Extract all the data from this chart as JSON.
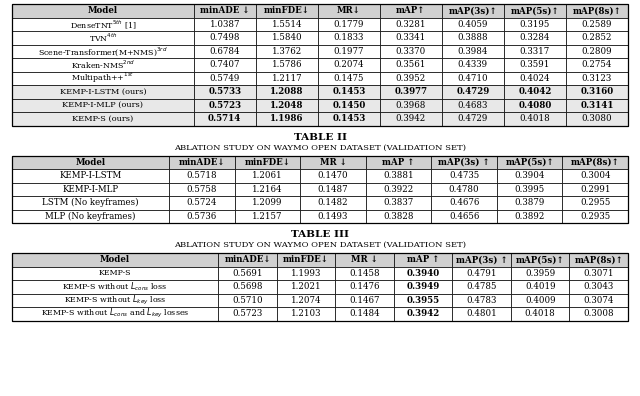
{
  "t1_headers": [
    "Model",
    "minADE ↓",
    "minFDE↓",
    "MR↓",
    "mAP↑",
    "mAP(3s)↑",
    "mAP(5s)↑",
    "mAP(8s)↑"
  ],
  "t1_rows": [
    [
      "DenseTNT",
      "5th",
      " [1]",
      "1.0387",
      "1.5514",
      "0.1779",
      "0.3281",
      "0.4059",
      "0.3195",
      "0.2589"
    ],
    [
      "TVN",
      "4th",
      "",
      "0.7498",
      "1.5840",
      "0.1833",
      "0.3341",
      "0.3888",
      "0.3284",
      "0.2852"
    ],
    [
      "Scene-Transformer(M+NMS)",
      "3rd",
      "",
      "0.6784",
      "1.3762",
      "0.1977",
      "0.3370",
      "0.3984",
      "0.3317",
      "0.2809"
    ],
    [
      "Kraken-NMS",
      "2nd",
      "",
      "0.7407",
      "1.5786",
      "0.2074",
      "0.3561",
      "0.4339",
      "0.3591",
      "0.2754"
    ],
    [
      "Multipath++",
      "1st",
      "",
      "0.5749",
      "1.2117",
      "0.1475",
      "0.3952",
      "0.4710",
      "0.4024",
      "0.3123"
    ],
    [
      "KEMP-I-LSTM (ours)",
      "",
      "",
      "0.5733",
      "1.2088",
      "0.1453",
      "0.3977",
      "0.4729",
      "0.4042",
      "0.3160"
    ],
    [
      "KEMP-I-MLP (ours)",
      "",
      "",
      "0.5723",
      "1.2048",
      "0.1450",
      "0.3968",
      "0.4683",
      "0.4080",
      "0.3141"
    ],
    [
      "KEMP-S (ours)",
      "",
      "",
      "0.5714",
      "1.1986",
      "0.1453",
      "0.3942",
      "0.4729",
      "0.4018",
      "0.3080"
    ]
  ],
  "t1_bold_rows": [
    5,
    6,
    7
  ],
  "t1_bold_spec": {
    "5": [
      3,
      4,
      5,
      6,
      7,
      8,
      9
    ],
    "6": [
      3,
      4,
      5,
      8,
      9
    ],
    "7": [
      3,
      4,
      5
    ]
  },
  "t2_title": "TABLE II",
  "t2_subtitle": "ABLATION STUDY ON WAYMO OPEN DATASET (VALIDATION SET)",
  "t2_headers": [
    "Model",
    "minADE↓",
    "minFDE↓",
    "MR ↓",
    "mAP ↑",
    "mAP(3s) ↑",
    "mAP(5s)↑",
    "mAP(8s)↑"
  ],
  "t2_rows": [
    [
      "KEMP-I-LSTM",
      "0.5718",
      "1.2061",
      "0.1470",
      "0.3881",
      "0.4735",
      "0.3904",
      "0.3004"
    ],
    [
      "KEMP-I-MLP",
      "0.5758",
      "1.2164",
      "0.1487",
      "0.3922",
      "0.4780",
      "0.3995",
      "0.2991"
    ],
    [
      "LSTM (No keyframes)",
      "0.5724",
      "1.2099",
      "0.1482",
      "0.3837",
      "0.4676",
      "0.3879",
      "0.2955"
    ],
    [
      "MLP (No keyframes)",
      "0.5736",
      "1.2157",
      "0.1493",
      "0.3828",
      "0.4656",
      "0.3892",
      "0.2935"
    ]
  ],
  "t3_title": "TABLE III",
  "t3_subtitle": "ABLATION STUDY ON WAYMO OPEN DATASET (VALIDATION SET)",
  "t3_headers": [
    "Model",
    "minADE↓",
    "minFDE↓",
    "MR ↓",
    "mAP ↑",
    "mAP(3s) ↑",
    "mAP(5s)↑",
    "mAP(8s)↑"
  ],
  "t3_rows": [
    [
      "KEMP-S",
      "0.5691",
      "1.1993",
      "0.1458",
      "0.3940",
      "0.4791",
      "0.3959",
      "0.3071"
    ],
    [
      "KEMP-S without $L_{cons}$ loss",
      "0.5698",
      "1.2021",
      "0.1476",
      "0.3949",
      "0.4785",
      "0.4019",
      "0.3043"
    ],
    [
      "KEMP-S without $L_{key}$ loss",
      "0.5710",
      "1.2074",
      "0.1467",
      "0.3955",
      "0.4783",
      "0.4009",
      "0.3074"
    ],
    [
      "KEMP-S without $L_{cons}$ and $L_{key}$ losses",
      "0.5723",
      "1.2103",
      "0.1484",
      "0.3942",
      "0.4801",
      "0.4018",
      "0.3008"
    ]
  ]
}
